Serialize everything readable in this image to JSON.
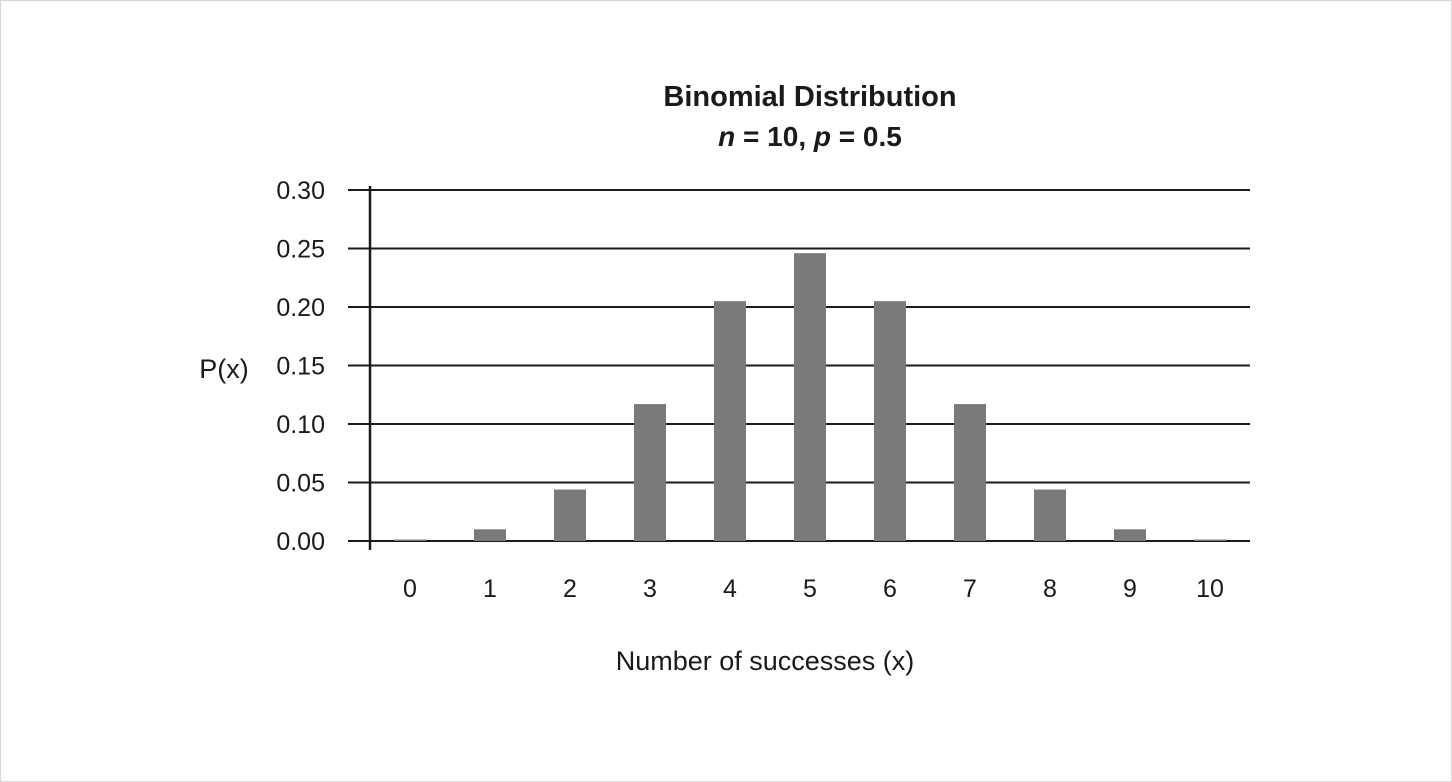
{
  "chart_data": {
    "type": "bar",
    "title": "Binomial Distribution",
    "subtitle": "n = 10, p = 0.5",
    "subtitle_parts": {
      "n": "n",
      "n_eq": " = 10, ",
      "p": "p",
      "p_eq": " = 0.5"
    },
    "xlabel": "Number of successes (x)",
    "ylabel": "P(x)",
    "categories": [
      "0",
      "1",
      "2",
      "3",
      "4",
      "5",
      "6",
      "7",
      "8",
      "9",
      "10"
    ],
    "values": [
      0.001,
      0.01,
      0.044,
      0.117,
      0.205,
      0.246,
      0.205,
      0.117,
      0.044,
      0.01,
      0.001
    ],
    "ylim": [
      0,
      0.3
    ],
    "yticks": [
      "0.00",
      "0.05",
      "0.10",
      "0.15",
      "0.20",
      "0.25",
      "0.30"
    ],
    "grid": true,
    "legend": "none",
    "bar_color": "#7a7a7a",
    "grid_color": "#1a1a1a"
  }
}
